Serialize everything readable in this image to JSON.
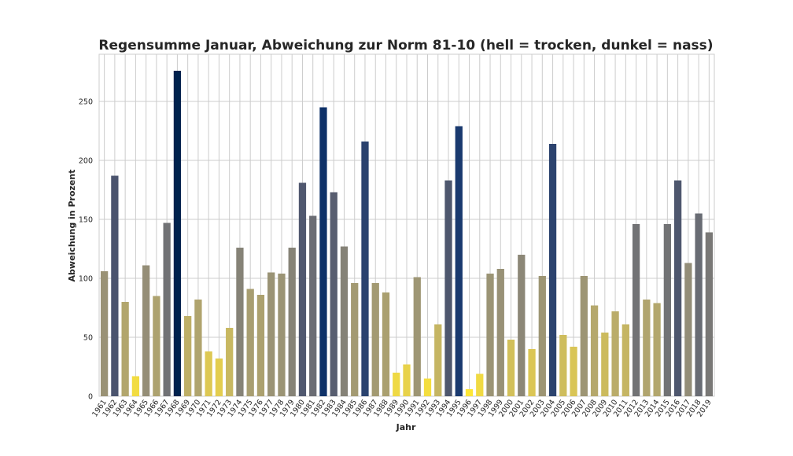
{
  "chart_data": {
    "type": "bar",
    "title": "Regensumme Januar, Abweichung zur Norm 81-10 (hell = trocken, dunkel = nass)",
    "xlabel": "Jahr",
    "ylabel": "Abweichung in Prozent",
    "ylim": [
      0,
      290
    ],
    "yticks": [
      0,
      50,
      100,
      150,
      200,
      250
    ],
    "grid": true,
    "colormap": "cividis_r",
    "categories": [
      "1961",
      "1962",
      "1963",
      "1964",
      "1965",
      "1966",
      "1967",
      "1968",
      "1969",
      "1970",
      "1971",
      "1972",
      "1973",
      "1974",
      "1975",
      "1976",
      "1977",
      "1978",
      "1979",
      "1980",
      "1981",
      "1982",
      "1983",
      "1984",
      "1985",
      "1986",
      "1987",
      "1988",
      "1989",
      "1990",
      "1991",
      "1992",
      "1993",
      "1994",
      "1995",
      "1996",
      "1997",
      "1998",
      "1999",
      "2000",
      "2001",
      "2002",
      "2003",
      "2004",
      "2005",
      "2006",
      "2007",
      "2008",
      "2009",
      "2010",
      "2011",
      "2012",
      "2013",
      "2014",
      "2015",
      "2016",
      "2017",
      "2018",
      "2019"
    ],
    "values": [
      106,
      187,
      80,
      17,
      111,
      85,
      147,
      276,
      68,
      82,
      38,
      32,
      58,
      126,
      91,
      86,
      105,
      104,
      126,
      181,
      153,
      245,
      173,
      127,
      96,
      216,
      96,
      88,
      20,
      27,
      101,
      15,
      61,
      183,
      229,
      6,
      19,
      104,
      108,
      48,
      120,
      40,
      102,
      214,
      52,
      42,
      102,
      77,
      54,
      72,
      61,
      146,
      82,
      79,
      146,
      183,
      113,
      155,
      139
    ]
  }
}
